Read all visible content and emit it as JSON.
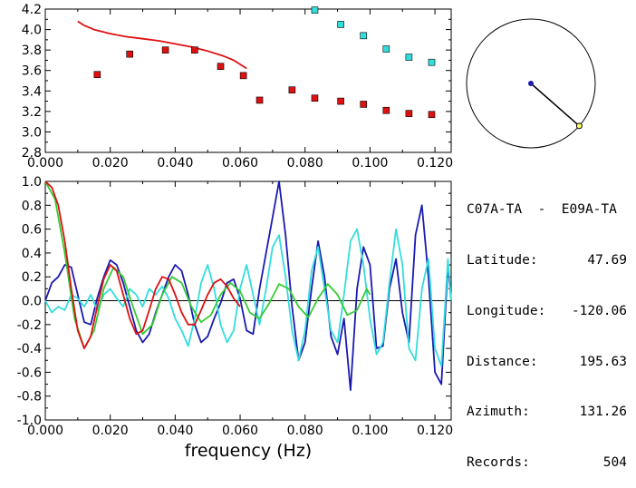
{
  "station_pair": "C07A-TA  -  E09A-TA",
  "info": [
    {
      "key": "Latitude:",
      "value": "47.69"
    },
    {
      "key": "Longitude:",
      "value": "-120.06"
    },
    {
      "key": "Distance:",
      "value": "195.63"
    },
    {
      "key": "Azimuth:",
      "value": "131.26"
    },
    {
      "key": "Records:",
      "value": "504"
    }
  ],
  "colors": {
    "red": "#dd1111",
    "cyan": "#33dddd",
    "blue": "#1a1ab0",
    "green": "#33cc33",
    "axis": "#000000"
  },
  "chart_data": [
    {
      "type": "scatter",
      "xlim": [
        0.0,
        0.125
      ],
      "ylim": [
        2.8,
        4.2
      ],
      "x_ticks": [
        "0.000",
        "0.020",
        "0.040",
        "0.060",
        "0.080",
        "0.100",
        "0.120"
      ],
      "y_ticks": [
        "2.8",
        "3.0",
        "3.2",
        "3.4",
        "3.6",
        "3.8",
        "4.0",
        "4.2"
      ],
      "series": [
        {
          "kind": "line",
          "color": "red",
          "x": [
            0.01,
            0.012,
            0.015,
            0.02,
            0.025,
            0.03,
            0.035,
            0.04,
            0.045,
            0.05,
            0.055,
            0.058,
            0.06,
            0.062
          ],
          "y": [
            4.08,
            4.04,
            4.0,
            3.96,
            3.93,
            3.91,
            3.89,
            3.86,
            3.83,
            3.79,
            3.74,
            3.7,
            3.66,
            3.62
          ]
        },
        {
          "kind": "points",
          "color": "red",
          "x": [
            0.016,
            0.026,
            0.037,
            0.046,
            0.054,
            0.061,
            0.066,
            0.076,
            0.083,
            0.091,
            0.098,
            0.105,
            0.112,
            0.119
          ],
          "y": [
            3.56,
            3.76,
            3.8,
            3.8,
            3.64,
            3.55,
            3.31,
            3.41,
            3.33,
            3.3,
            3.27,
            3.21,
            3.18,
            3.17
          ]
        },
        {
          "kind": "points",
          "color": "cyan",
          "x": [
            0.083,
            0.091,
            0.098,
            0.105,
            0.112,
            0.119
          ],
          "y": [
            4.19,
            4.05,
            3.94,
            3.81,
            3.73,
            3.68
          ]
        }
      ]
    },
    {
      "type": "line",
      "xlabel": "frequency (Hz)",
      "xlim": [
        0.0,
        0.125
      ],
      "ylim": [
        -1.0,
        1.0
      ],
      "x_ticks": [
        "0.000",
        "0.020",
        "0.040",
        "0.060",
        "0.080",
        "0.100",
        "0.120"
      ],
      "y_ticks": [
        "1.0",
        "0.8",
        "0.6",
        "0.4",
        "0.2",
        "0.0",
        "-0.2",
        "-0.4",
        "-0.6",
        "-0.8",
        "-1.0"
      ],
      "series": [
        {
          "color": "blue",
          "x": [
            0,
            0.002,
            0.004,
            0.006,
            0.008,
            0.01,
            0.012,
            0.014,
            0.016,
            0.018,
            0.02,
            0.022,
            0.024,
            0.026,
            0.028,
            0.03,
            0.032,
            0.034,
            0.036,
            0.038,
            0.04,
            0.042,
            0.044,
            0.046,
            0.048,
            0.05,
            0.052,
            0.054,
            0.056,
            0.058,
            0.06,
            0.062,
            0.064,
            0.066,
            0.068,
            0.07,
            0.072,
            0.074,
            0.076,
            0.078,
            0.08,
            0.082,
            0.084,
            0.086,
            0.088,
            0.09,
            0.092,
            0.094,
            0.096,
            0.098,
            0.1,
            0.102,
            0.104,
            0.106,
            0.108,
            0.11,
            0.112,
            0.114,
            0.116,
            0.118,
            0.12,
            0.122,
            0.124,
            0.125
          ],
          "y": [
            0.0,
            0.15,
            0.2,
            0.3,
            0.28,
            0.05,
            -0.18,
            -0.2,
            0.02,
            0.2,
            0.34,
            0.3,
            0.15,
            -0.05,
            -0.25,
            -0.35,
            -0.28,
            -0.1,
            0.05,
            0.2,
            0.3,
            0.25,
            0.05,
            -0.2,
            -0.35,
            -0.3,
            -0.15,
            -0.02,
            0.15,
            0.18,
            0.02,
            -0.25,
            -0.28,
            0.1,
            0.4,
            0.7,
            1.0,
            0.55,
            -0.05,
            -0.5,
            -0.35,
            0.1,
            0.5,
            0.2,
            -0.3,
            -0.45,
            -0.15,
            -0.75,
            0.1,
            0.45,
            0.3,
            -0.4,
            -0.38,
            0.1,
            0.35,
            -0.1,
            -0.35,
            0.55,
            0.8,
            0.2,
            -0.6,
            -0.7,
            0.3,
            0.0
          ]
        },
        {
          "color": "cyan",
          "x": [
            0,
            0.002,
            0.004,
            0.006,
            0.008,
            0.01,
            0.012,
            0.014,
            0.016,
            0.018,
            0.02,
            0.022,
            0.024,
            0.026,
            0.028,
            0.03,
            0.032,
            0.034,
            0.036,
            0.038,
            0.04,
            0.042,
            0.044,
            0.046,
            0.048,
            0.05,
            0.052,
            0.054,
            0.056,
            0.058,
            0.06,
            0.062,
            0.064,
            0.066,
            0.068,
            0.07,
            0.072,
            0.074,
            0.076,
            0.078,
            0.08,
            0.082,
            0.084,
            0.086,
            0.088,
            0.09,
            0.092,
            0.094,
            0.096,
            0.098,
            0.1,
            0.102,
            0.104,
            0.106,
            0.108,
            0.11,
            0.112,
            0.114,
            0.116,
            0.118,
            0.12,
            0.122,
            0.124,
            0.125
          ],
          "y": [
            0.0,
            -0.1,
            -0.05,
            -0.08,
            0.05,
            0.02,
            -0.05,
            0.05,
            -0.08,
            0.05,
            0.1,
            0.02,
            -0.05,
            0.1,
            0.05,
            -0.05,
            0.1,
            0.05,
            0.12,
            0.02,
            -0.15,
            -0.25,
            -0.38,
            -0.15,
            0.15,
            0.3,
            0.1,
            -0.2,
            -0.35,
            -0.25,
            0.1,
            0.3,
            0.05,
            -0.2,
            0.1,
            0.45,
            0.55,
            0.2,
            -0.25,
            -0.5,
            -0.25,
            0.25,
            0.45,
            0.1,
            -0.25,
            -0.35,
            0.05,
            0.5,
            0.6,
            0.3,
            -0.15,
            -0.45,
            -0.35,
            0.15,
            0.6,
            0.3,
            -0.4,
            -0.5,
            0.1,
            0.35,
            -0.4,
            -0.55,
            0.35,
            0.0
          ]
        },
        {
          "color": "green",
          "x": [
            0,
            0.003,
            0.006,
            0.009,
            0.012,
            0.015,
            0.018,
            0.021,
            0.024,
            0.027,
            0.03,
            0.033,
            0.036,
            0.039,
            0.042,
            0.045,
            0.048,
            0.051,
            0.054,
            0.057,
            0.06,
            0.063,
            0.066,
            0.069,
            0.072,
            0.075,
            0.078,
            0.081,
            0.084,
            0.087,
            0.09,
            0.093,
            0.096,
            0.099,
            0.1
          ],
          "y": [
            1.0,
            0.85,
            0.4,
            -0.15,
            -0.4,
            -0.25,
            0.1,
            0.28,
            0.2,
            -0.05,
            -0.28,
            -0.2,
            0.05,
            0.2,
            0.15,
            -0.05,
            -0.18,
            -0.12,
            0.05,
            0.15,
            0.08,
            -0.1,
            -0.15,
            -0.02,
            0.14,
            0.1,
            -0.05,
            -0.14,
            0.02,
            0.14,
            0.05,
            -0.12,
            -0.08,
            0.1,
            0.05
          ]
        },
        {
          "color": "red",
          "x": [
            0,
            0.002,
            0.004,
            0.006,
            0.008,
            0.01,
            0.012,
            0.014,
            0.016,
            0.018,
            0.02,
            0.022,
            0.024,
            0.026,
            0.028,
            0.03,
            0.032,
            0.034,
            0.036,
            0.038,
            0.04,
            0.042,
            0.044,
            0.046,
            0.048,
            0.05,
            0.052,
            0.054,
            0.056,
            0.058,
            0.06
          ],
          "y": [
            1.0,
            0.95,
            0.8,
            0.5,
            0.1,
            -0.25,
            -0.4,
            -0.3,
            -0.05,
            0.18,
            0.3,
            0.25,
            0.05,
            -0.15,
            -0.28,
            -0.25,
            -0.08,
            0.1,
            0.2,
            0.18,
            0.05,
            -0.1,
            -0.2,
            -0.2,
            -0.08,
            0.05,
            0.15,
            0.18,
            0.12,
            0.02,
            -0.05
          ]
        }
      ]
    }
  ],
  "azimuth_dial": {
    "azimuth_deg": 131.26
  }
}
